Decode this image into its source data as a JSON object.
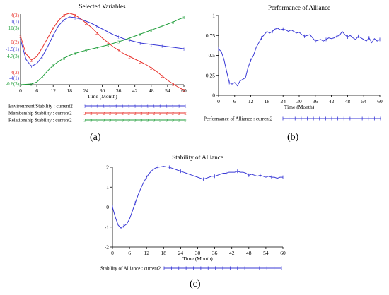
{
  "panels": [
    {
      "id": "a",
      "caption": "(a)",
      "chart_data": {
        "type": "line",
        "title": "Selected Variables",
        "xlabel": "Time (Month)",
        "xlim": [
          0,
          60
        ],
        "x_ticks": [
          "0",
          "6",
          "12",
          "18",
          "24",
          "30",
          "36",
          "42",
          "48",
          "54",
          "60"
        ],
        "y_axes": [
          {
            "ticks": [
              "4(2)",
              "0(2)",
              "-4(2)"
            ],
            "range": [
              -4,
              4
            ],
            "color": "#e8302a"
          },
          {
            "ticks": [
              "1(1)",
              "-1.5(1)",
              "-4(1)"
            ],
            "range": [
              -4,
              1
            ],
            "color": "#3a3ad6"
          },
          {
            "ticks": [
              "10(3)",
              "4.7(3)",
              "-0.6(3)"
            ],
            "range": [
              -0.6,
              10
            ],
            "color": "#1f9e3a"
          }
        ],
        "series": [
          {
            "name": "Environment Stability : current2",
            "marker": "1",
            "color": "#3a3ad6",
            "axis": 1,
            "x": [
              0,
              2,
              4,
              6,
              8,
              10,
              12,
              14,
              16,
              18,
              20,
              22,
              24,
              26,
              28,
              30,
              32,
              34,
              36,
              38,
              40,
              42,
              44,
              46,
              48,
              50,
              52,
              54,
              56,
              58,
              60
            ],
            "values": [
              -0.8,
              -2.2,
              -2.7,
              -2.5,
              -2.0,
              -1.3,
              -0.5,
              0.2,
              0.6,
              0.8,
              0.75,
              0.65,
              0.5,
              0.35,
              0.15,
              -0.05,
              -0.25,
              -0.45,
              -0.6,
              -0.75,
              -0.85,
              -0.95,
              -1.05,
              -1.1,
              -1.15,
              -1.2,
              -1.25,
              -1.3,
              -1.35,
              -1.4,
              -1.45
            ]
          },
          {
            "name": "Membership Stability : current2",
            "marker": "2",
            "color": "#e8302a",
            "axis": 0,
            "x": [
              0,
              2,
              4,
              6,
              8,
              10,
              12,
              14,
              16,
              18,
              20,
              22,
              24,
              26,
              28,
              30,
              32,
              34,
              36,
              38,
              40,
              42,
              44,
              46,
              48,
              50,
              52,
              54,
              56,
              58,
              60
            ],
            "values": [
              1.5,
              -0.5,
              -1.2,
              -0.8,
              0.2,
              1.3,
              2.4,
              3.3,
              3.9,
              4.1,
              3.9,
              3.5,
              3.0,
              2.5,
              1.9,
              1.3,
              0.8,
              0.3,
              -0.1,
              -0.5,
              -0.8,
              -1.1,
              -1.4,
              -1.7,
              -2.1,
              -2.5,
              -3.0,
              -3.5,
              -3.9,
              -4.3,
              -4.6
            ]
          },
          {
            "name": "Relationship Stability : current2",
            "marker": "3",
            "color": "#1f9e3a",
            "axis": 2,
            "x": [
              0,
              2,
              4,
              6,
              8,
              10,
              12,
              14,
              16,
              18,
              20,
              22,
              24,
              26,
              28,
              30,
              32,
              34,
              36,
              38,
              40,
              42,
              44,
              46,
              48,
              50,
              52,
              54,
              56,
              58,
              60
            ],
            "values": [
              -0.6,
              -0.55,
              -0.5,
              -0.2,
              0.6,
              1.5,
              2.3,
              2.9,
              3.4,
              3.8,
              4.1,
              4.35,
              4.55,
              4.75,
              4.95,
              5.15,
              5.35,
              5.6,
              5.85,
              6.1,
              6.4,
              6.7,
              7.0,
              7.3,
              7.6,
              7.9,
              8.2,
              8.5,
              8.8,
              9.2,
              9.5
            ]
          }
        ]
      }
    },
    {
      "id": "b",
      "caption": "(b)",
      "chart_data": {
        "type": "line",
        "title": "Performance of Alliance",
        "xlabel": "Time (Month)",
        "xlim": [
          0,
          60
        ],
        "ylim": [
          0,
          1
        ],
        "x_ticks": [
          "0",
          "6",
          "12",
          "18",
          "24",
          "30",
          "36",
          "42",
          "48",
          "54",
          "60"
        ],
        "y_ticks": [
          "0",
          "0.25",
          "0.5",
          "0.75",
          "1"
        ],
        "y_values": [
          0,
          0.25,
          0.5,
          0.75,
          1
        ],
        "series": [
          {
            "name": "Performance of Alliance : current2",
            "marker": "+",
            "color": "#3a3ad6",
            "x": [
              0,
              1,
              2,
              3,
              4,
              5,
              6,
              7,
              8,
              9,
              10,
              11,
              12,
              13,
              14,
              15,
              16,
              17,
              18,
              19,
              20,
              21,
              22,
              23,
              24,
              25,
              26,
              27,
              28,
              29,
              30,
              31,
              32,
              33,
              34,
              35,
              36,
              37,
              38,
              39,
              40,
              41,
              42,
              43,
              44,
              45,
              46,
              47,
              48,
              49,
              50,
              51,
              52,
              53,
              54,
              55,
              56,
              57,
              58,
              59,
              60
            ],
            "values": [
              0.58,
              0.55,
              0.45,
              0.3,
              0.16,
              0.14,
              0.16,
              0.12,
              0.18,
              0.2,
              0.22,
              0.35,
              0.44,
              0.5,
              0.6,
              0.66,
              0.72,
              0.76,
              0.8,
              0.78,
              0.8,
              0.83,
              0.84,
              0.82,
              0.83,
              0.82,
              0.8,
              0.82,
              0.8,
              0.78,
              0.79,
              0.76,
              0.74,
              0.75,
              0.76,
              0.72,
              0.68,
              0.69,
              0.7,
              0.68,
              0.7,
              0.72,
              0.71,
              0.72,
              0.74,
              0.75,
              0.8,
              0.76,
              0.73,
              0.75,
              0.72,
              0.7,
              0.74,
              0.72,
              0.7,
              0.68,
              0.72,
              0.66,
              0.71,
              0.68,
              0.7
            ]
          }
        ]
      }
    },
    {
      "id": "c",
      "caption": "(c)",
      "chart_data": {
        "type": "line",
        "title": "Stability of Alliance",
        "xlabel": "Time (Month)",
        "xlim": [
          0,
          60
        ],
        "ylim": [
          -2,
          2
        ],
        "x_ticks": [
          "0",
          "6",
          "12",
          "18",
          "24",
          "30",
          "36",
          "42",
          "48",
          "54",
          "60"
        ],
        "y_ticks": [
          "-2",
          "-1",
          "0",
          "1",
          "2"
        ],
        "y_values": [
          -2,
          -1,
          0,
          1,
          2
        ],
        "series": [
          {
            "name": "Stability of Alliance : current2",
            "marker": "+",
            "color": "#3a3ad6",
            "x": [
              0,
              1,
              2,
              3,
              4,
              5,
              6,
              7,
              8,
              9,
              10,
              11,
              12,
              13,
              14,
              15,
              16,
              17,
              18,
              19,
              20,
              21,
              22,
              23,
              24,
              25,
              26,
              27,
              28,
              29,
              30,
              31,
              32,
              33,
              34,
              35,
              36,
              37,
              38,
              39,
              40,
              41,
              42,
              43,
              44,
              45,
              46,
              47,
              48,
              49,
              50,
              51,
              52,
              53,
              54,
              55,
              56,
              57,
              58,
              59,
              60
            ],
            "values": [
              0.0,
              -0.5,
              -0.9,
              -1.05,
              -0.95,
              -0.85,
              -0.6,
              -0.2,
              0.2,
              0.6,
              0.95,
              1.25,
              1.5,
              1.7,
              1.85,
              1.95,
              2.0,
              2.02,
              2.05,
              2.02,
              2.0,
              1.95,
              1.9,
              1.85,
              1.8,
              1.75,
              1.7,
              1.65,
              1.6,
              1.55,
              1.5,
              1.45,
              1.4,
              1.45,
              1.5,
              1.55,
              1.55,
              1.6,
              1.65,
              1.7,
              1.7,
              1.75,
              1.75,
              1.75,
              1.8,
              1.75,
              1.75,
              1.7,
              1.6,
              1.65,
              1.6,
              1.55,
              1.6,
              1.55,
              1.5,
              1.55,
              1.5,
              1.5,
              1.45,
              1.5,
              1.5
            ]
          }
        ]
      }
    }
  ]
}
